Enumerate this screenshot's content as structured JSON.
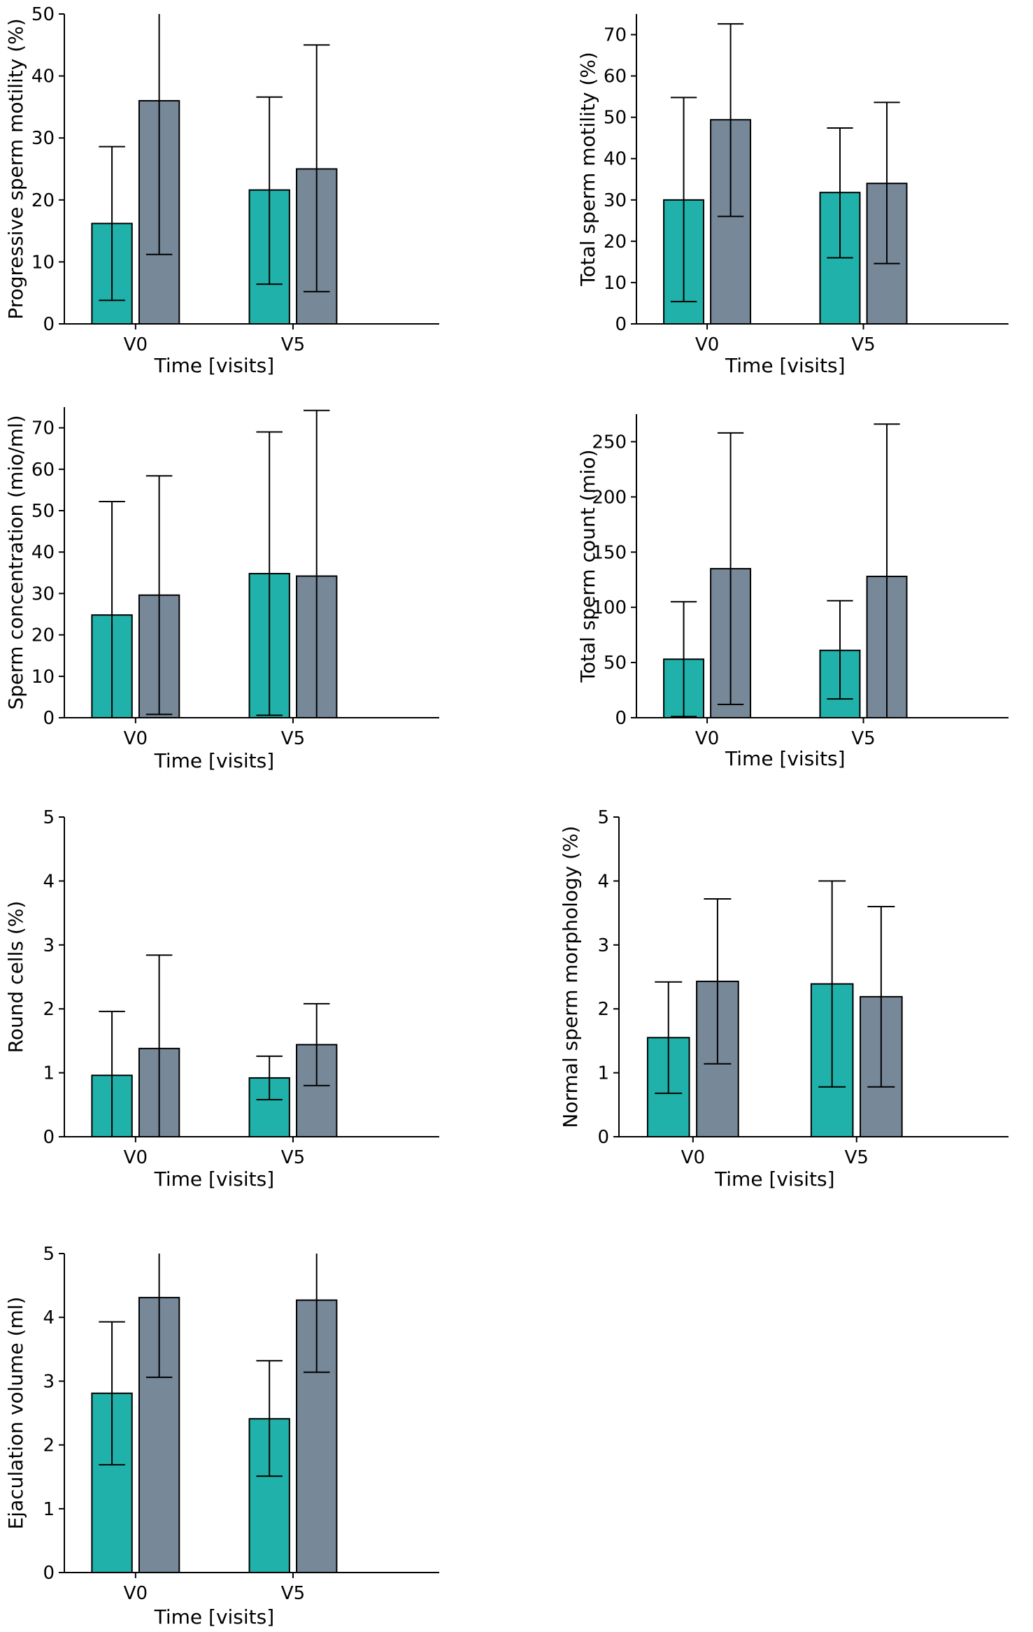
{
  "colors": {
    "series_a": "#20b2aa",
    "series_b": "#778899"
  },
  "chart_data": [
    {
      "type": "bar",
      "categories": [
        "V0",
        "V5"
      ],
      "xlabel": "Time [visits]",
      "ylabel": "Progressive sperm motility (%)",
      "ylim": [
        0,
        50
      ],
      "yticks": [
        0,
        10,
        20,
        30,
        40,
        50
      ],
      "series": [
        {
          "values": [
            16.2,
            21.6
          ],
          "err_low": [
            3.8,
            6.4
          ],
          "err_high": [
            28.6,
            36.6
          ]
        },
        {
          "values": [
            36.0,
            25.0
          ],
          "err_low": [
            11.2,
            5.2
          ],
          "err_high": [
            50.0,
            45.0
          ]
        }
      ]
    },
    {
      "type": "bar",
      "categories": [
        "V0",
        "V5"
      ],
      "xlabel": "Time [visits]",
      "ylabel": "Total sperm motility (%)",
      "ylim": [
        0,
        75
      ],
      "yticks": [
        0,
        10,
        20,
        30,
        40,
        50,
        60,
        70
      ],
      "series": [
        {
          "values": [
            30.0,
            31.8
          ],
          "err_low": [
            5.4,
            16.0
          ],
          "err_high": [
            54.8,
            47.4
          ]
        },
        {
          "values": [
            49.4,
            34.0
          ],
          "err_low": [
            26.0,
            14.6
          ],
          "err_high": [
            72.6,
            53.6
          ]
        }
      ]
    },
    {
      "type": "bar",
      "categories": [
        "V0",
        "V5"
      ],
      "xlabel": "Time [visits]",
      "ylabel": "Sperm concentration (mio/ml)",
      "ylim": [
        0,
        75
      ],
      "yticks": [
        0,
        10,
        20,
        30,
        40,
        50,
        60,
        70
      ],
      "series": [
        {
          "values": [
            24.8,
            34.8
          ],
          "err_low": [
            0,
            0.6
          ],
          "err_high": [
            52.2,
            69.0
          ]
        },
        {
          "values": [
            29.6,
            34.2
          ],
          "err_low": [
            0.8,
            0
          ],
          "err_high": [
            58.4,
            74.2
          ]
        }
      ]
    },
    {
      "type": "bar",
      "categories": [
        "V0",
        "V5"
      ],
      "xlabel": "Time [visits]",
      "ylabel": "Total sperm count (mio)",
      "ylim": [
        0,
        275
      ],
      "yticks": [
        0,
        50,
        100,
        150,
        200,
        250
      ],
      "series": [
        {
          "values": [
            53,
            61
          ],
          "err_low": [
            1,
            17
          ],
          "err_high": [
            105,
            106
          ]
        },
        {
          "values": [
            135,
            128
          ],
          "err_low": [
            12,
            0
          ],
          "err_high": [
            258,
            266
          ]
        }
      ]
    },
    {
      "type": "bar",
      "categories": [
        "V0",
        "V5"
      ],
      "xlabel": "Time [visits]",
      "ylabel": "Round cells (%)",
      "ylim": [
        0,
        5
      ],
      "yticks": [
        0,
        1,
        2,
        3,
        4,
        5
      ],
      "series": [
        {
          "values": [
            0.96,
            0.92
          ],
          "err_low": [
            0,
            0.58
          ],
          "err_high": [
            1.96,
            1.26
          ]
        },
        {
          "values": [
            1.38,
            1.44
          ],
          "err_low": [
            0,
            0.8
          ],
          "err_high": [
            2.84,
            2.08
          ]
        }
      ]
    },
    {
      "type": "bar",
      "categories": [
        "V0",
        "V5"
      ],
      "xlabel": "Time [visits]",
      "ylabel": "Normal sperm morphology (%)",
      "ylim": [
        0,
        5
      ],
      "yticks": [
        0,
        1,
        2,
        3,
        4,
        5
      ],
      "series": [
        {
          "values": [
            1.55,
            2.39
          ],
          "err_low": [
            0.68,
            0.78
          ],
          "err_high": [
            2.42,
            4.0
          ]
        },
        {
          "values": [
            2.43,
            2.19
          ],
          "err_low": [
            1.14,
            0.78
          ],
          "err_high": [
            3.72,
            3.6
          ]
        }
      ]
    },
    {
      "type": "bar",
      "categories": [
        "V0",
        "V5"
      ],
      "xlabel": "Time [visits]",
      "ylabel": "Ejaculation volume (ml)",
      "ylim": [
        0,
        5
      ],
      "yticks": [
        0,
        1,
        2,
        3,
        4,
        5
      ],
      "series": [
        {
          "values": [
            2.81,
            2.41
          ],
          "err_low": [
            1.69,
            1.51
          ],
          "err_high": [
            3.93,
            3.32
          ]
        },
        {
          "values": [
            4.31,
            4.27
          ],
          "err_low": [
            3.06,
            3.14
          ],
          "err_high": [
            5.0,
            5.0
          ]
        }
      ]
    }
  ]
}
